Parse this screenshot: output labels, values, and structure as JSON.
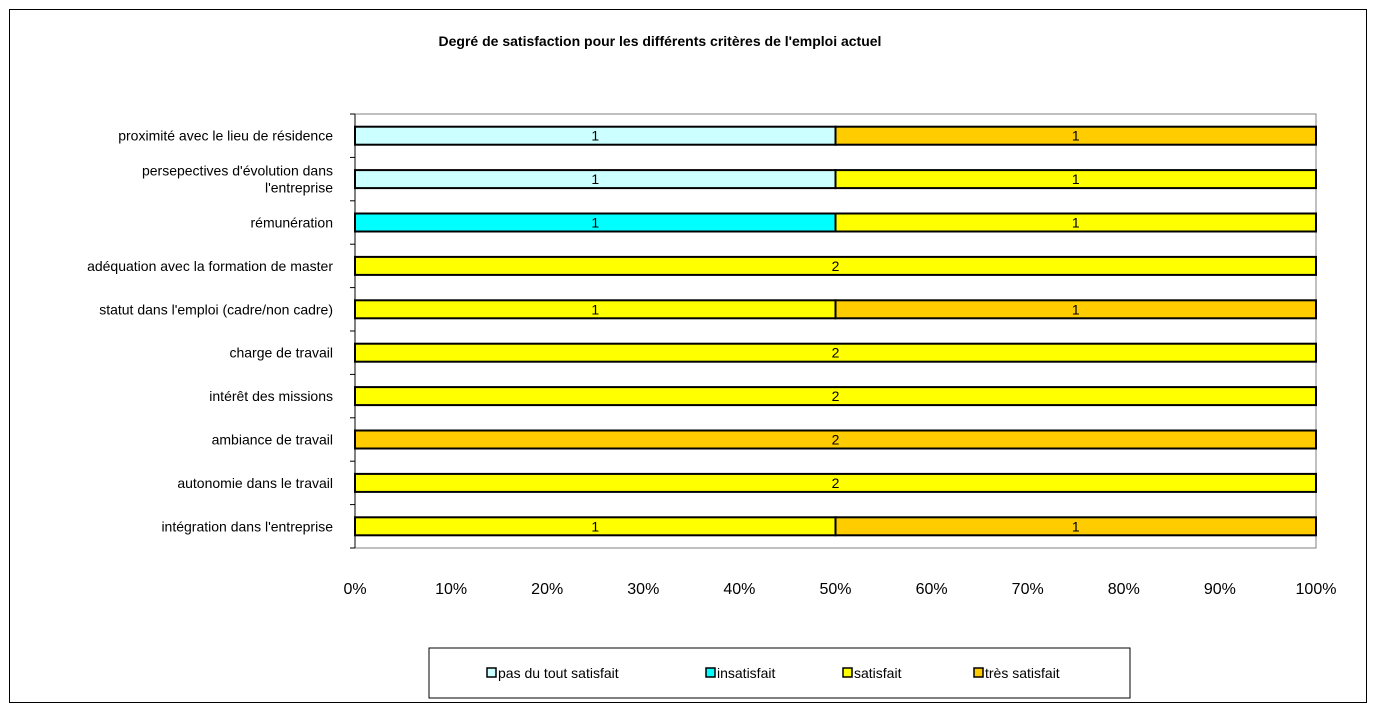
{
  "chart_data": {
    "type": "bar",
    "orientation": "horizontal",
    "stacked": "percent",
    "title": "Degré de satisfaction pour les différents critères de l'emploi actuel",
    "categories": [
      "proximité avec le lieu de résidence",
      "persepectives d'évolution dans l'entreprise",
      "rémunération",
      "adéquation avec la formation de master",
      "statut dans l'emploi (cadre/non cadre)",
      "charge de travail",
      "intérêt des missions",
      "ambiance de travail",
      "autonomie dans le travail",
      "intégration dans l'entreprise"
    ],
    "category_lines": [
      [
        "proximité avec le lieu de résidence"
      ],
      [
        "persepectives d'évolution dans",
        "l'entreprise"
      ],
      [
        "rémunération"
      ],
      [
        "adéquation avec la formation de master"
      ],
      [
        "statut dans l'emploi (cadre/non cadre)"
      ],
      [
        "charge de travail"
      ],
      [
        "intérêt des missions"
      ],
      [
        "ambiance de travail"
      ],
      [
        "autonomie dans le travail"
      ],
      [
        "intégration dans l'entreprise"
      ]
    ],
    "series": [
      {
        "name": "pas du tout satisfait",
        "color": "#CCFFFF",
        "values": [
          1,
          1,
          0,
          0,
          0,
          0,
          0,
          0,
          0,
          0
        ]
      },
      {
        "name": "insatisfait",
        "color": "#00FFFF",
        "values": [
          0,
          0,
          1,
          0,
          0,
          0,
          0,
          0,
          0,
          0
        ]
      },
      {
        "name": "satisfait",
        "color": "#FFFF00",
        "values": [
          0,
          1,
          1,
          2,
          1,
          2,
          2,
          0,
          2,
          1
        ]
      },
      {
        "name": "très satisfait",
        "color": "#FFCC00",
        "values": [
          1,
          0,
          0,
          0,
          1,
          0,
          0,
          2,
          0,
          1
        ]
      }
    ],
    "xticks": [
      "0%",
      "10%",
      "20%",
      "30%",
      "40%",
      "50%",
      "60%",
      "70%",
      "80%",
      "90%",
      "100%"
    ],
    "xlim": [
      0,
      100
    ],
    "grid": false,
    "legend_position": "bottom"
  }
}
